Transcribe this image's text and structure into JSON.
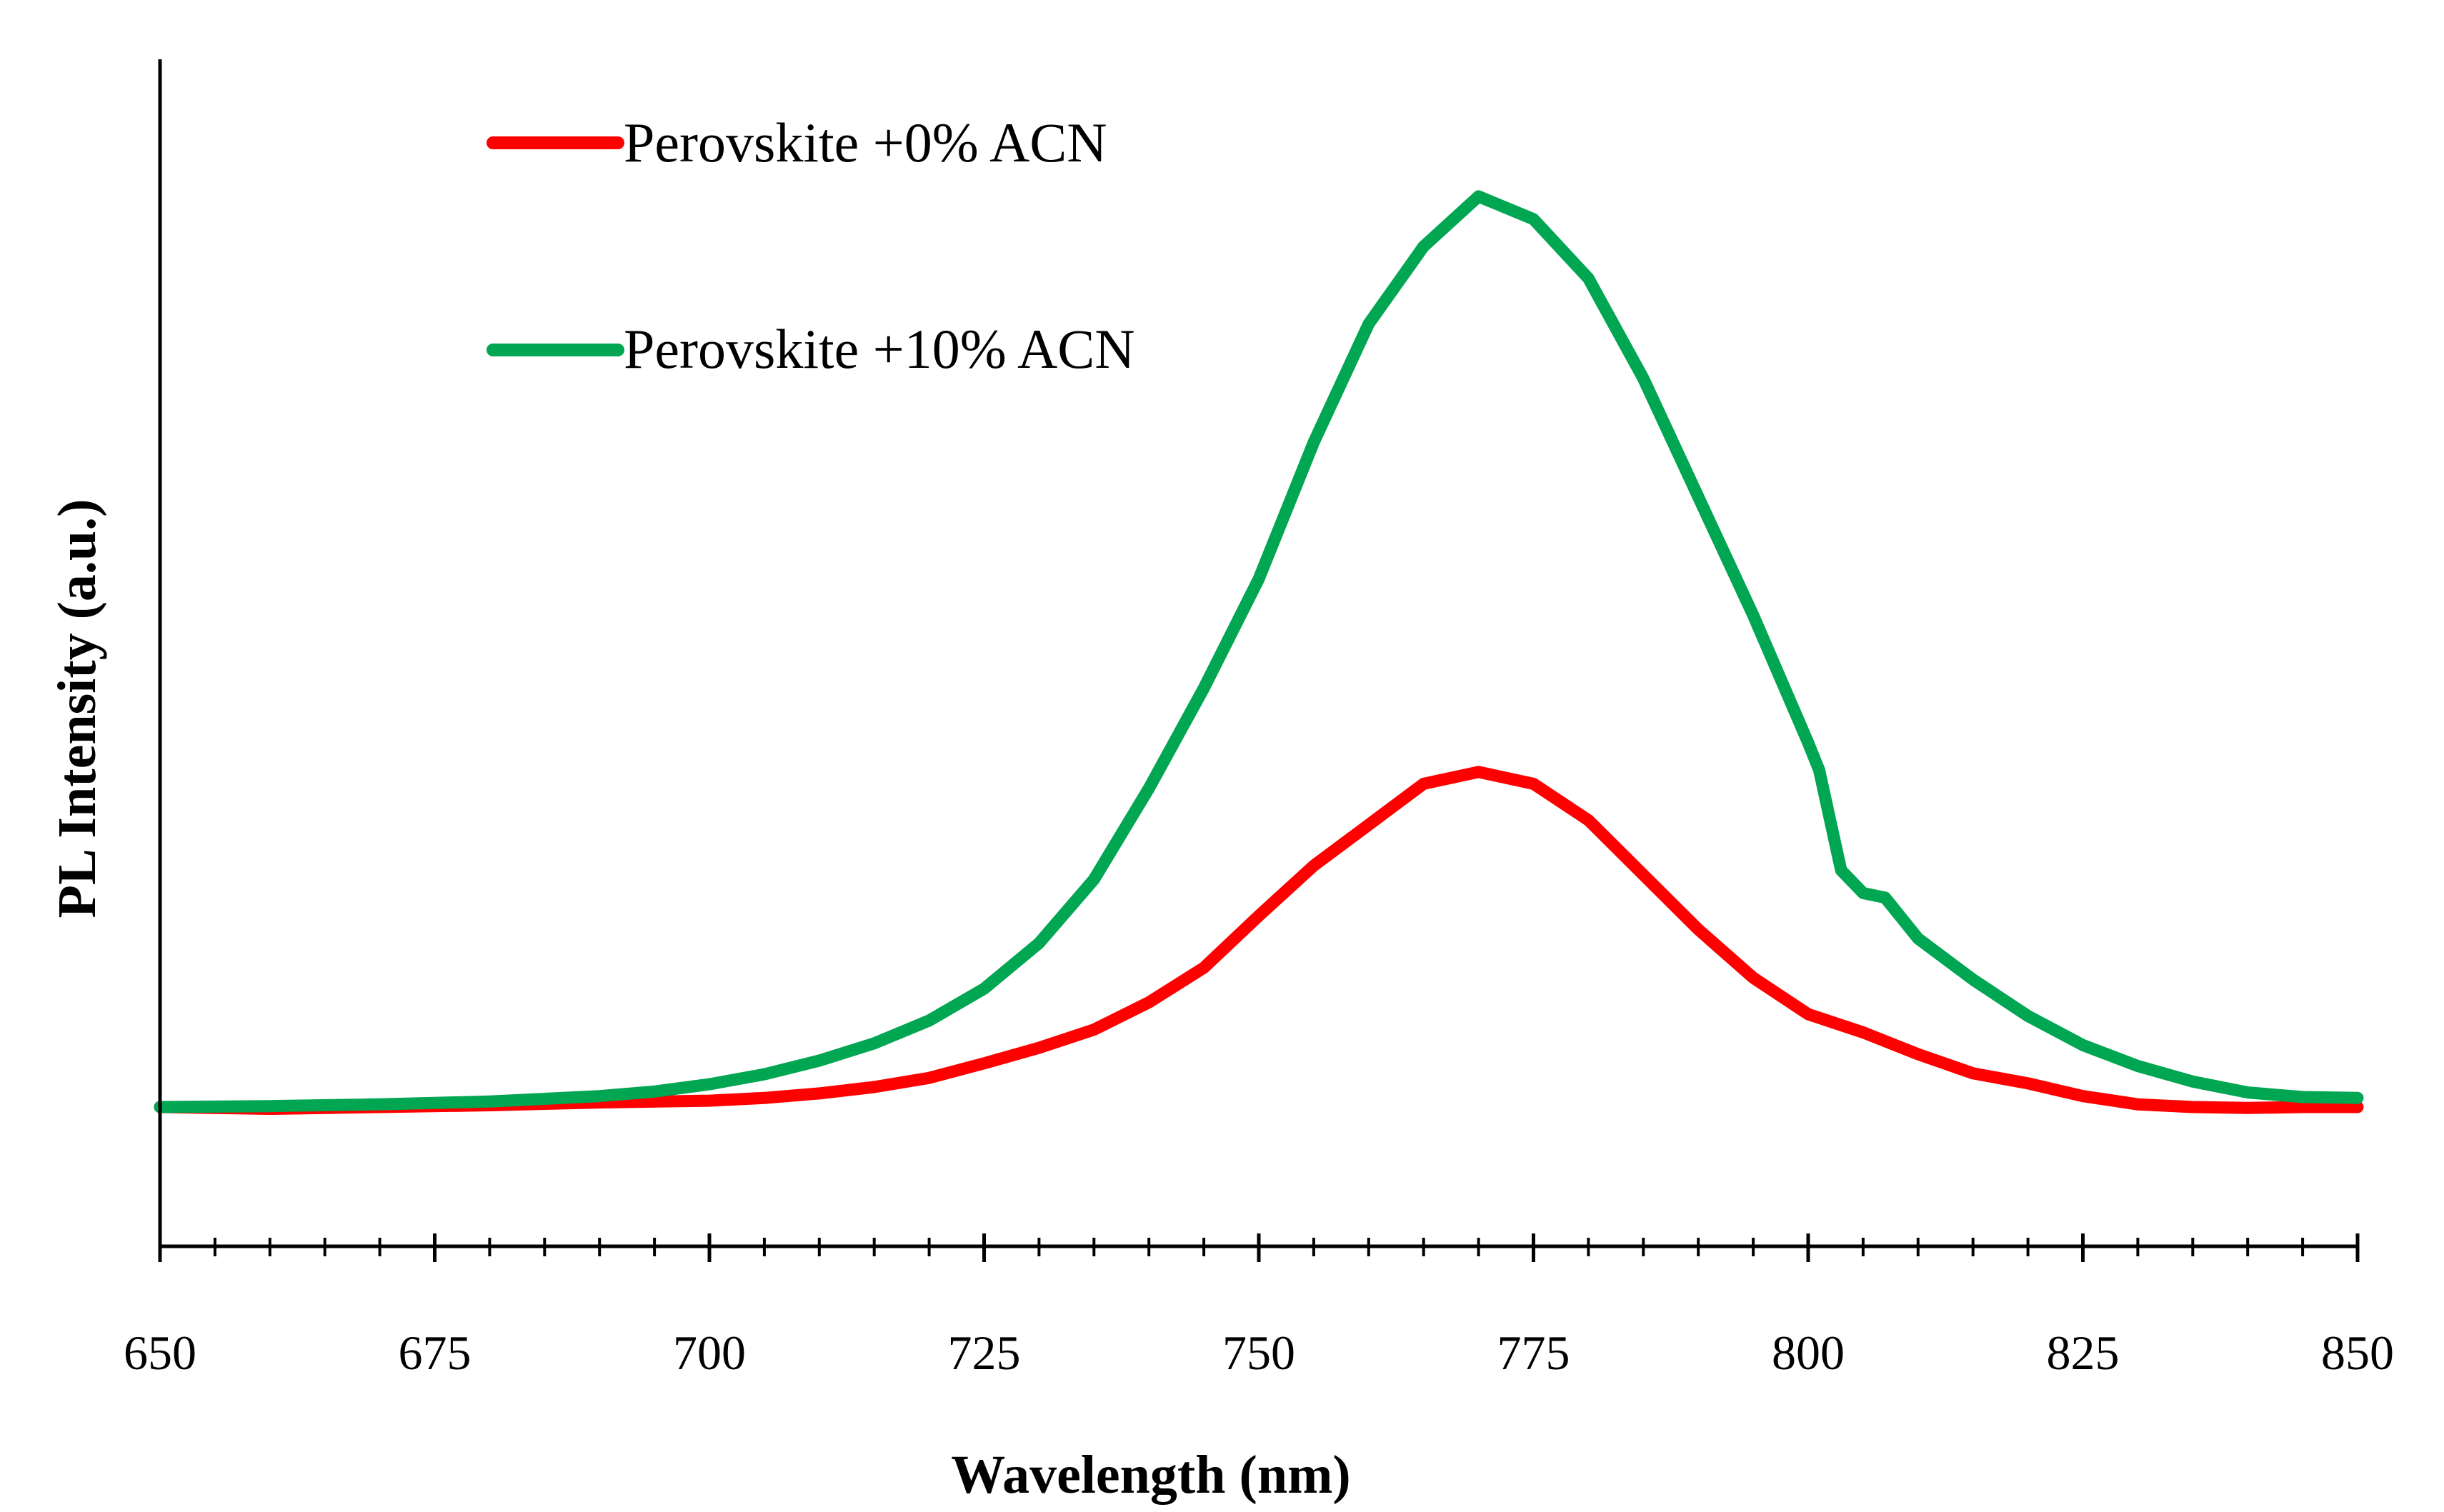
{
  "chart_data": {
    "type": "line",
    "title": "",
    "xlabel": "Wavelength (nm)",
    "ylabel": "PL Intensity (a.u.)",
    "xlim": [
      650,
      850
    ],
    "ylim": [
      -10,
      100
    ],
    "x_major_ticks": [
      650,
      675,
      700,
      725,
      750,
      775,
      800,
      825,
      850
    ],
    "x_major_tick_labels": [
      "650",
      "675",
      "700",
      "725",
      "750",
      "775",
      "800",
      "825",
      "850"
    ],
    "x_minor_step": 5,
    "y_tick_labels_shown": false,
    "grid": false,
    "legend_position": "top-left",
    "series": [
      {
        "name": "Perovskite +0% ACN",
        "color": "#ff0000",
        "x": [
          650,
          660,
          670,
          680,
          690,
          700,
          705,
          710,
          715,
          720,
          725,
          730,
          735,
          740,
          745,
          750,
          755,
          760,
          765,
          770,
          775,
          780,
          785,
          790,
          795,
          800,
          805,
          810,
          815,
          820,
          825,
          830,
          835,
          840,
          845,
          850
        ],
        "y": [
          0,
          -0.2,
          0,
          0.2,
          0.5,
          0.7,
          1.0,
          1.5,
          2.2,
          3.2,
          4.8,
          6.5,
          8.5,
          11.5,
          15.3,
          21,
          26.5,
          31,
          35.5,
          36.8,
          35.5,
          31.5,
          25.5,
          19.5,
          14.2,
          10.2,
          8.2,
          5.8,
          3.7,
          2.6,
          1.2,
          0.3,
          0,
          -0.1,
          0,
          0
        ]
      },
      {
        "name": "Perovskite +10% ACN",
        "color": "#00a651",
        "x": [
          650,
          660,
          670,
          680,
          690,
          695,
          700,
          705,
          710,
          715,
          720,
          725,
          730,
          735,
          740,
          745,
          750,
          755,
          760,
          765,
          770,
          775,
          780,
          785,
          790,
          795,
          800,
          801,
          803,
          805,
          807,
          810,
          815,
          820,
          825,
          830,
          835,
          840,
          845,
          850
        ],
        "y": [
          0,
          0.1,
          0.3,
          0.6,
          1.2,
          1.7,
          2.5,
          3.6,
          5.1,
          7.0,
          9.5,
          13,
          18,
          25,
          35,
          46,
          58,
          73,
          86,
          94.5,
          100,
          97.5,
          91,
          80,
          67,
          54,
          40,
          37,
          26,
          23.5,
          23,
          18.5,
          14,
          10,
          6.8,
          4.5,
          2.8,
          1.6,
          1.1,
          1.0
        ]
      }
    ]
  }
}
